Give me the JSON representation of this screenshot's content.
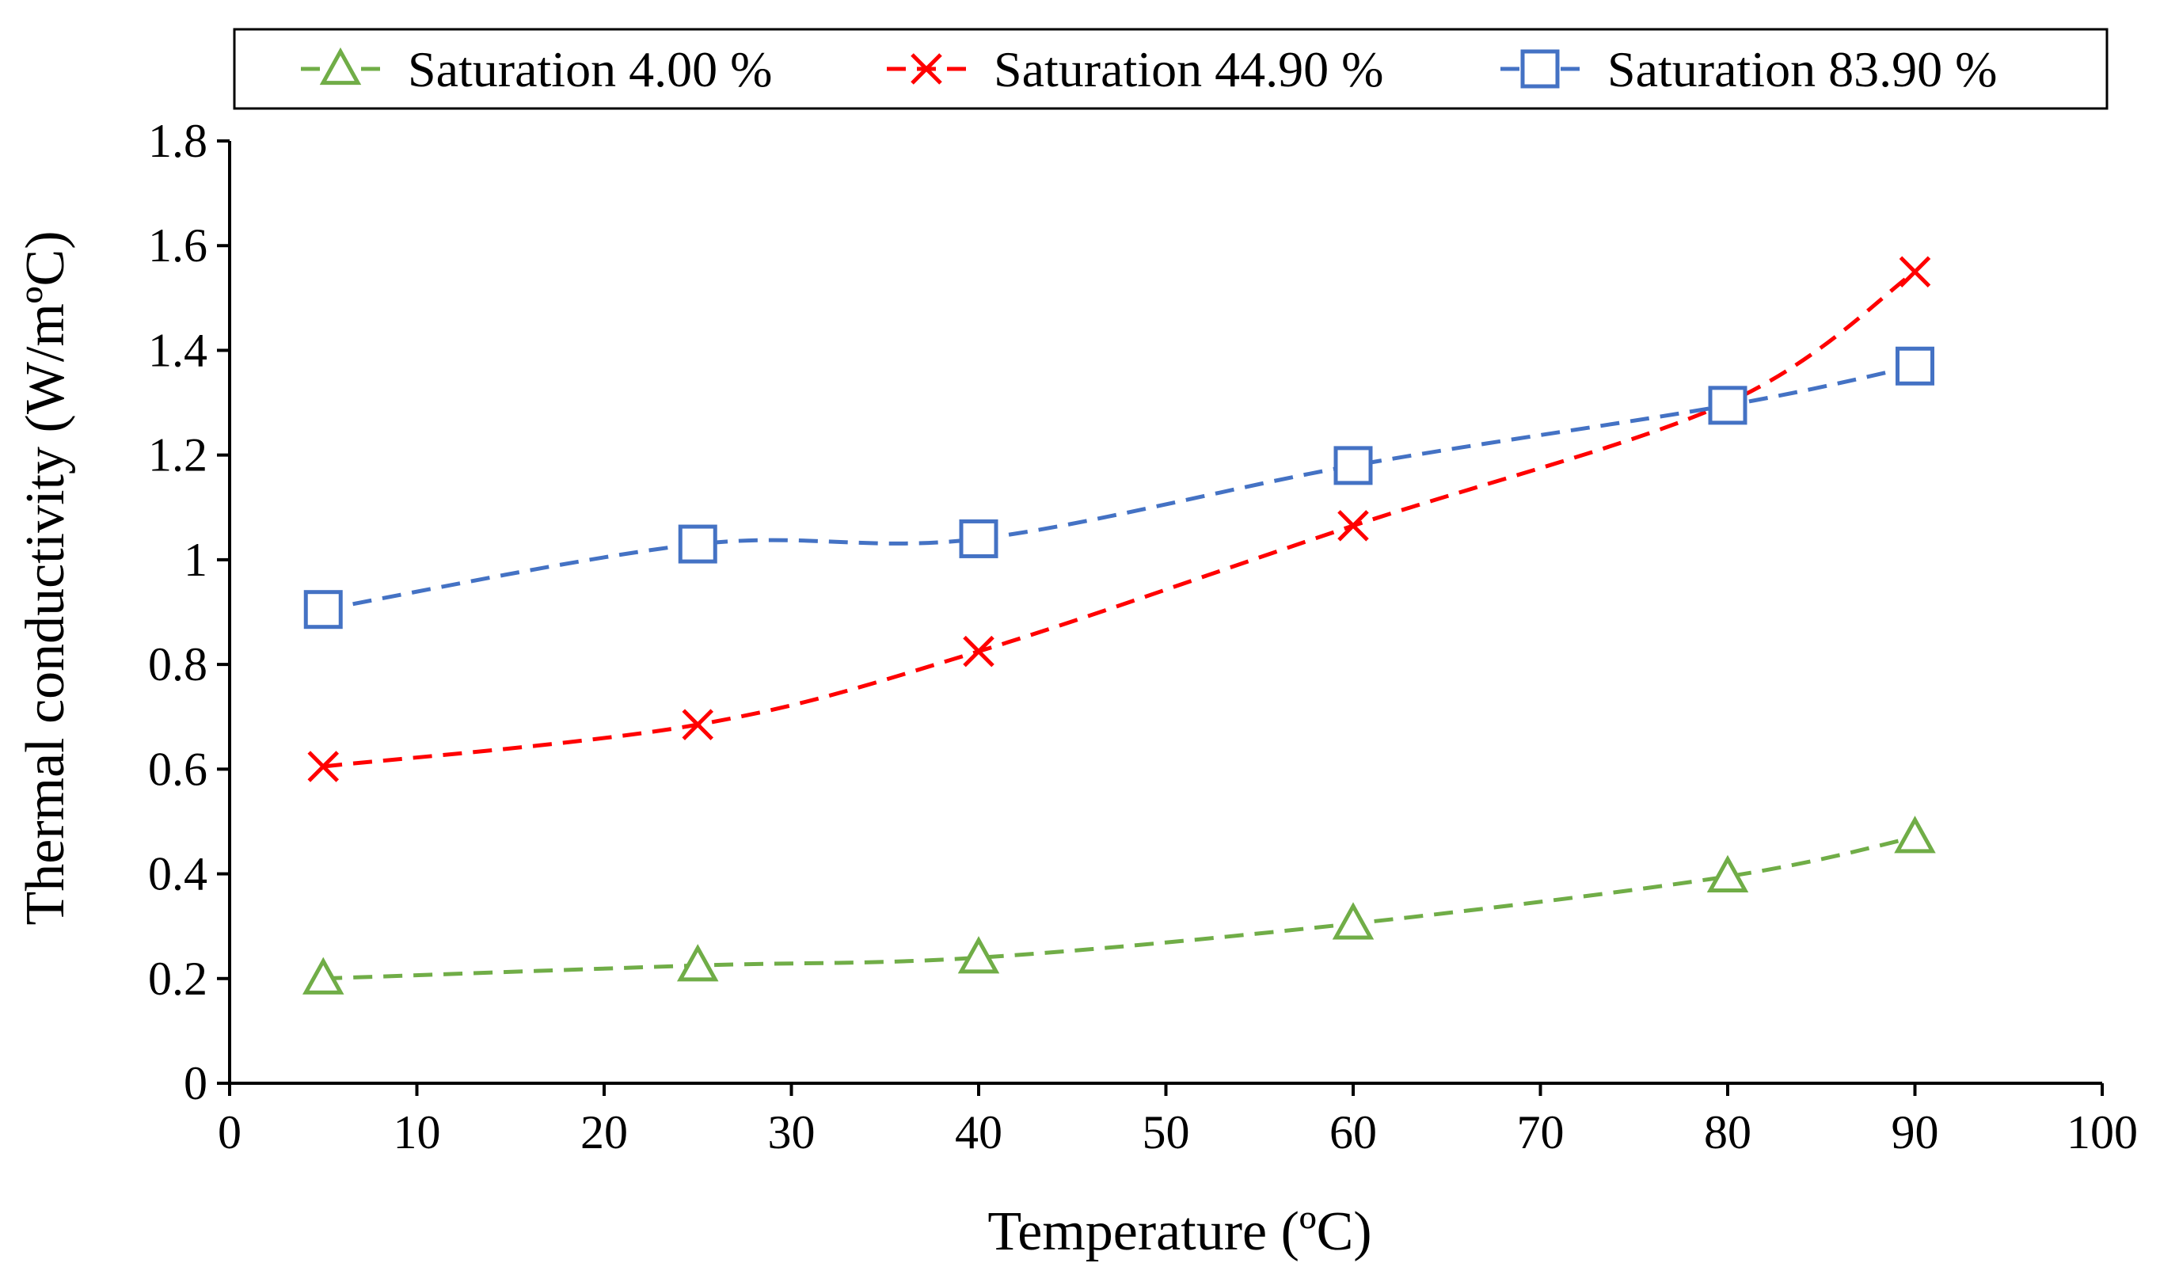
{
  "chart_data": {
    "type": "line",
    "title": "",
    "xlabel": "Temperature (ºC)",
    "ylabel": "Thermal conductivity (W/mºC)",
    "xlim": [
      0,
      100
    ],
    "ylim": [
      0,
      1.8
    ],
    "xticks": [
      0,
      10,
      20,
      30,
      40,
      50,
      60,
      70,
      80,
      90,
      100
    ],
    "yticks": [
      0,
      0.2,
      0.4,
      0.6,
      0.8,
      1,
      1.2,
      1.4,
      1.6,
      1.8
    ],
    "xtick_labels": [
      "0",
      "10",
      "20",
      "30",
      "40",
      "50",
      "60",
      "70",
      "80",
      "90",
      "100"
    ],
    "ytick_labels": [
      "0",
      "0.2",
      "0.4",
      "0.6",
      "0.8",
      "1",
      "1.2",
      "1.4",
      "1.6",
      "1.8"
    ],
    "grid": false,
    "legend_position": "top",
    "series": [
      {
        "name": "Saturation 4.00 %",
        "marker": "triangle",
        "color": "#70AD47",
        "x": [
          5,
          25,
          40,
          60,
          80,
          90
        ],
        "y": [
          0.2,
          0.225,
          0.24,
          0.305,
          0.395,
          0.47
        ]
      },
      {
        "name": "Saturation 44.90 %",
        "marker": "x",
        "color": "#FF0000",
        "x": [
          5,
          25,
          40,
          60,
          80,
          90
        ],
        "y": [
          0.605,
          0.685,
          0.825,
          1.065,
          1.3,
          1.55
        ]
      },
      {
        "name": "Saturation 83.90 %",
        "marker": "square",
        "color": "#4472C4",
        "x": [
          5,
          25,
          40,
          60,
          80,
          90
        ],
        "y": [
          0.905,
          1.03,
          1.04,
          1.18,
          1.295,
          1.37
        ]
      }
    ]
  }
}
